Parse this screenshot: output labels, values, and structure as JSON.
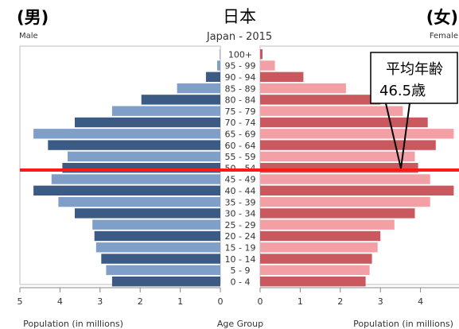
{
  "header": {
    "male_jp": "(男)",
    "male_en": "Male",
    "title_jp": "日本",
    "title_en": "Japan - 2015",
    "female_jp": "(女)",
    "female_en": "Female"
  },
  "chart_data": {
    "type": "bar",
    "subtype": "population-pyramid",
    "title": "Japan - 2015",
    "categories": [
      "100+",
      "95 - 99",
      "90 - 94",
      "85 - 89",
      "80 - 84",
      "75 - 79",
      "70 - 74",
      "65 - 69",
      "60 - 64",
      "55 - 59",
      "50 - 54",
      "45 - 49",
      "40 - 44",
      "35 - 39",
      "30 - 34",
      "25 - 29",
      "20 - 24",
      "15 - 19",
      "10 - 14",
      "5 - 9",
      "0 - 4"
    ],
    "series": [
      {
        "name": "Male",
        "values": [
          0.01,
          0.08,
          0.36,
          1.08,
          1.97,
          2.7,
          3.63,
          4.66,
          4.3,
          3.81,
          3.94,
          4.21,
          4.66,
          4.04,
          3.63,
          3.19,
          3.14,
          3.1,
          2.97,
          2.85,
          2.7
        ]
      },
      {
        "name": "Female",
        "values": [
          0.06,
          0.37,
          1.08,
          2.14,
          3.0,
          3.56,
          4.18,
          4.83,
          4.38,
          3.86,
          3.94,
          4.24,
          4.83,
          4.24,
          3.86,
          3.35,
          3.0,
          2.93,
          2.79,
          2.73,
          2.63
        ]
      }
    ],
    "xlim": [
      5,
      0,
      5
    ],
    "male_ticks": [
      "5",
      "4",
      "3",
      "2",
      "1",
      "0"
    ],
    "female_ticks": [
      "0",
      "1",
      "2",
      "3",
      "4"
    ],
    "male_xlabel": "Population (in millions)",
    "center_label": "Age Group",
    "female_xlabel": "Population (in millions)",
    "colors": {
      "male_light": "#7f9fc9",
      "male_dark": "#3b5b85",
      "female_light": "#f2a0a5",
      "female_dark": "#c9595f",
      "median_line": "#ff1a1a",
      "callout_border": "#000000"
    },
    "annotation": {
      "line1": "平均年齢",
      "line2": "46.5歳",
      "median_age_group": "50 - 54"
    }
  }
}
